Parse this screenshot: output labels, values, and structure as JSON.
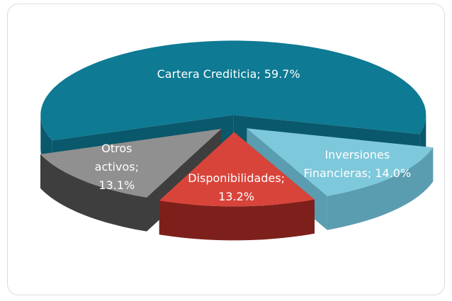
{
  "chart_data": {
    "type": "pie3d",
    "values": [
      59.7,
      14.0,
      13.2,
      13.1
    ],
    "value_labels": [
      "Cartera Crediticia; 59.7%",
      "Inversiones Financieras; 14.0%",
      "Disponibilidades; 13.2%",
      "Otros activos; 13.1%"
    ],
    "colors": [
      "#0e7a93",
      "#7ec8db",
      "#d9443a",
      "#909090"
    ],
    "side_colors": [
      "#09586b",
      "#5b9db0",
      "#7d201b",
      "#3e3e3e"
    ]
  }
}
